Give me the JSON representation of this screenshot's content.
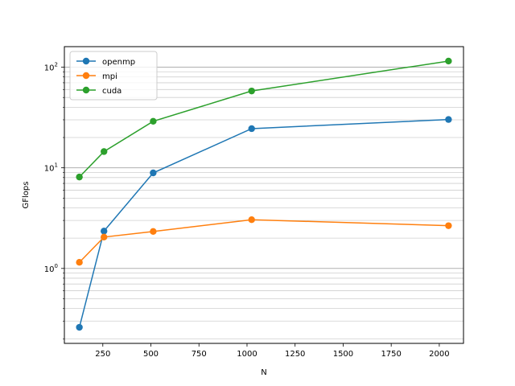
{
  "chart_data": {
    "type": "line",
    "title": "",
    "xlabel": "N",
    "ylabel": "GFlops",
    "x": [
      128,
      256,
      512,
      1024,
      2048
    ],
    "xlim": [
      50,
      2126
    ],
    "xticks": [
      250,
      500,
      750,
      1000,
      1250,
      1500,
      1750,
      2000
    ],
    "xtick_labels": [
      "250",
      "500",
      "750",
      "1000",
      "1250",
      "1500",
      "1750",
      "2000"
    ],
    "yscale": "log",
    "ylim": [
      0.18,
      160
    ],
    "ytick_labels": [
      {
        "base": "10",
        "exp": "0"
      },
      {
        "base": "10",
        "exp": "1"
      },
      {
        "base": "10",
        "exp": "2"
      }
    ],
    "grid": "y major and minor",
    "legend_position": "upper left",
    "series": [
      {
        "name": "openmp",
        "color": "#1f77b4",
        "values": [
          0.26,
          2.35,
          8.9,
          24.5,
          30.2
        ]
      },
      {
        "name": "mpi",
        "color": "#ff7f0e",
        "values": [
          1.15,
          2.05,
          2.33,
          3.05,
          2.66
        ]
      },
      {
        "name": "cuda",
        "color": "#2ca02c",
        "values": [
          8.1,
          14.5,
          29.0,
          58.0,
          115.0
        ]
      }
    ]
  }
}
